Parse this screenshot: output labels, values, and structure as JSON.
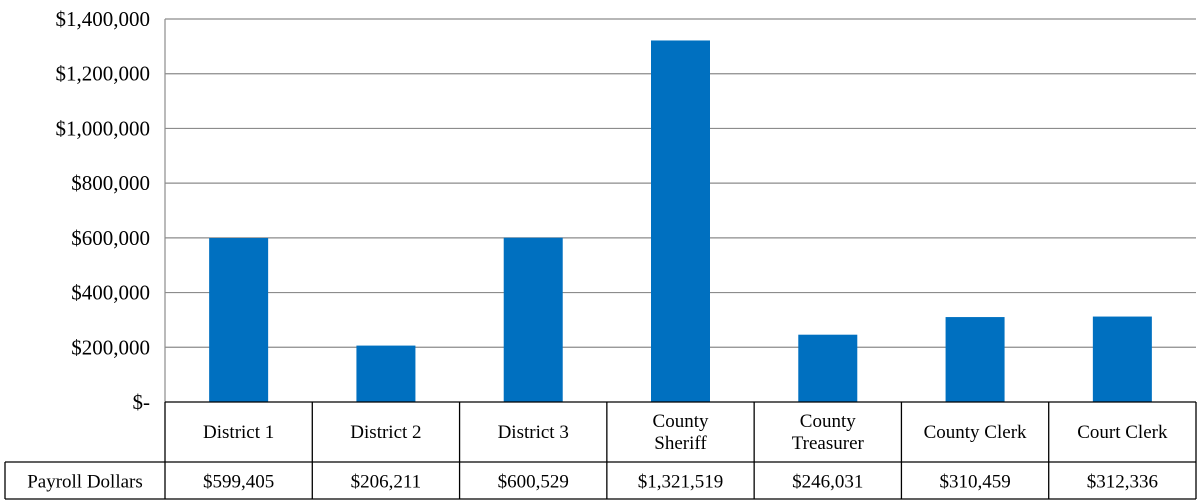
{
  "chart_data": {
    "type": "bar",
    "categories": [
      "District 1",
      "District 2",
      "District 3",
      "County Sheriff",
      "County Treasurer",
      "County Clerk",
      "Court Clerk"
    ],
    "series": [
      {
        "name": "Payroll Dollars",
        "values": [
          599405,
          206211,
          600529,
          1321519,
          246031,
          310459,
          312336
        ],
        "labels": [
          "$599,405",
          "$206,211",
          "$600,529",
          "$1,321,519",
          "$246,031",
          "$310,459",
          "$312,336"
        ]
      }
    ],
    "yticks": [
      0,
      200000,
      400000,
      600000,
      800000,
      1000000,
      1200000,
      1400000
    ],
    "ytick_labels": [
      "$-",
      "$200,000",
      "$400,000",
      "$600,000",
      "$800,000",
      "$1,000,000",
      "$1,200,000",
      "$1,400,000"
    ],
    "ylim": [
      0,
      1400000
    ],
    "grid": true,
    "legend": "data-table",
    "bar_color": "#0070C0"
  }
}
